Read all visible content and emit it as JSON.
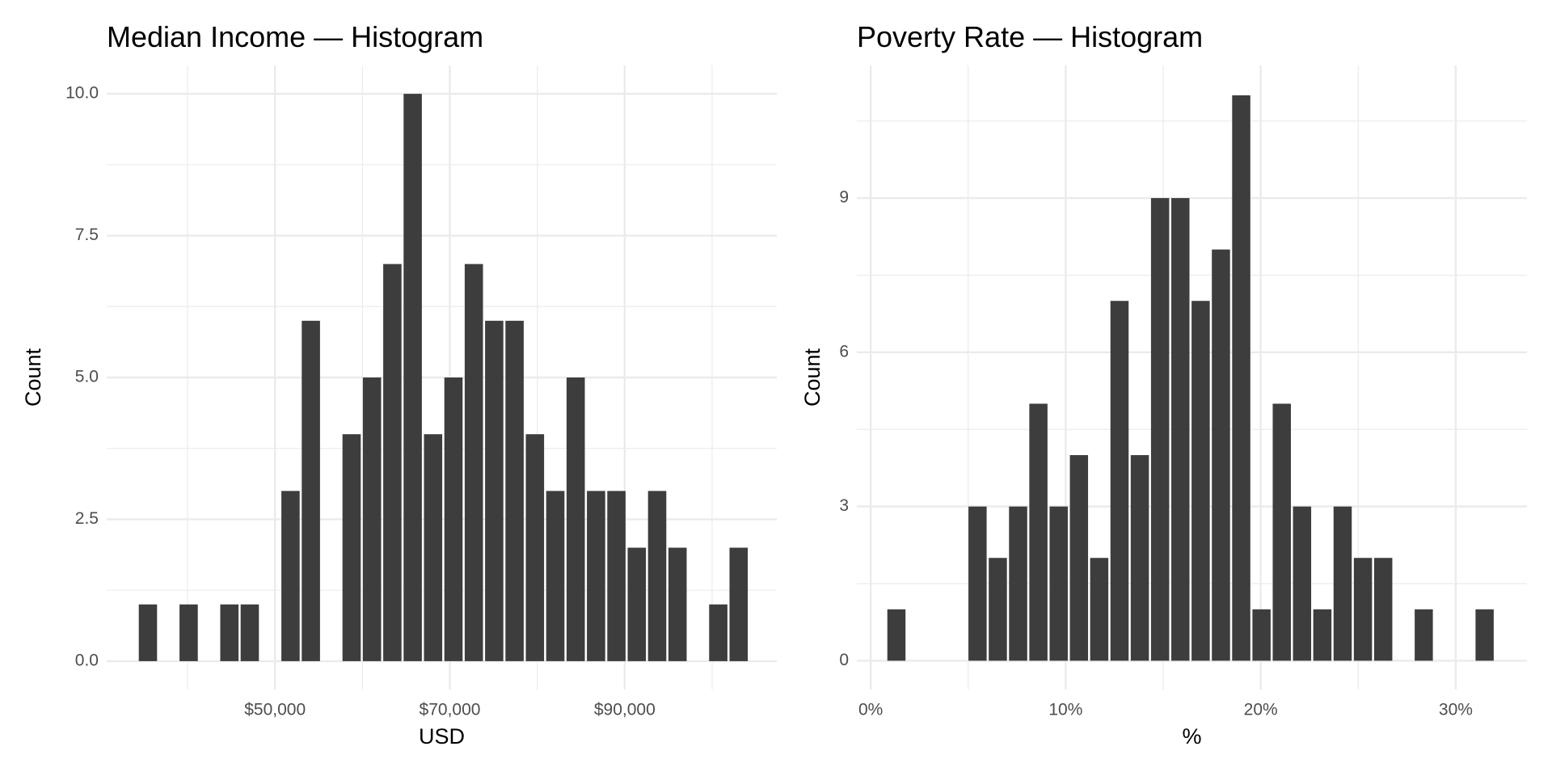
{
  "chart_data": [
    {
      "type": "histogram",
      "title": "Median Income — Histogram",
      "x_label": "USD",
      "y_label": "Count",
      "color": "#3d3d3d",
      "grid": true,
      "bins": [
        34300,
        36630,
        38960,
        41290,
        43620,
        45950,
        48280,
        50610,
        52940,
        55270,
        57600,
        59930,
        62260,
        64590,
        66920,
        69250,
        71580,
        73910,
        76240,
        78570,
        80900,
        83230,
        85560,
        87890,
        90220,
        92550,
        94880,
        97210,
        99540,
        101870,
        104200
      ],
      "values": [
        1,
        0,
        1,
        0,
        1,
        1,
        0,
        3,
        6,
        0,
        4,
        5,
        7,
        10,
        4,
        5,
        7,
        6,
        6,
        4,
        3,
        5,
        3,
        3,
        2,
        3,
        2,
        0,
        1,
        2
      ],
      "xlim": [
        30750,
        107400
      ],
      "xticks": [
        {
          "value": 50000,
          "label": "$50,000"
        },
        {
          "value": 70000,
          "label": "$70,000"
        },
        {
          "value": 90000,
          "label": "$90,000"
        }
      ],
      "ylim": [
        -0.5,
        10.5
      ],
      "yticks": [
        {
          "value": 0,
          "label": "0.0"
        },
        2.5,
        {
          "value": 5,
          "label": "5.0"
        },
        7.5,
        {
          "value": 10,
          "label": "10.0"
        }
      ]
    },
    {
      "type": "histogram",
      "title": "Poverty Rate — Histogram",
      "x_label": "%",
      "y_label": "Count",
      "color": "#3d3d3d",
      "grid": true,
      "bins": [
        0.8,
        1.84,
        2.88,
        3.92,
        4.96,
        6,
        7.04,
        8.08,
        9.12,
        10.16,
        11.2,
        12.24,
        13.28,
        14.32,
        15.36,
        16.4,
        17.44,
        18.48,
        19.52,
        20.56,
        21.6,
        22.64,
        23.68,
        24.72,
        25.76,
        26.8,
        27.84,
        28.88,
        29.92,
        30.96,
        32
      ],
      "values": [
        1,
        0,
        0,
        0,
        3,
        2,
        3,
        5,
        3,
        4,
        2,
        7,
        4,
        9,
        9,
        7,
        8,
        11,
        1,
        5,
        3,
        1,
        3,
        2,
        2,
        0,
        1,
        0,
        0,
        1
      ],
      "xlim": [
        -0.71,
        33.65
      ],
      "xticks": [
        {
          "value": 0,
          "label": "0%"
        },
        {
          "value": 10,
          "label": "10%"
        },
        {
          "value": 20,
          "label": "20%"
        },
        {
          "value": 30,
          "label": "30%"
        }
      ],
      "ylim": [
        -0.56,
        11.58
      ],
      "yticks": [
        0,
        3,
        6,
        9
      ]
    }
  ]
}
